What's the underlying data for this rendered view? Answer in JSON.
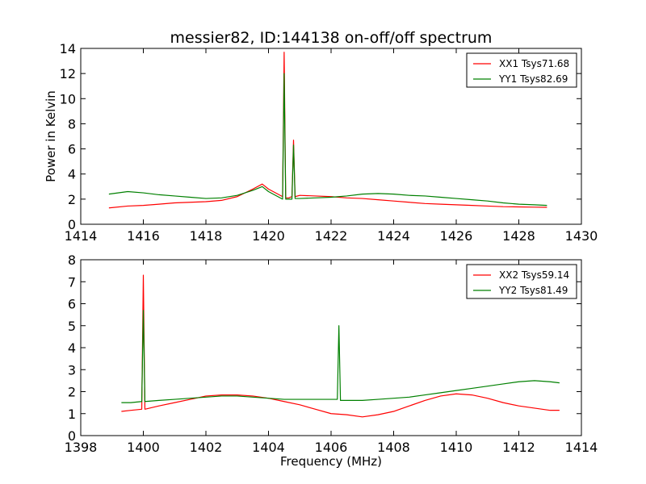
{
  "chart_data": [
    {
      "type": "line",
      "title": "messier82, ID:144138 on-off/off spectrum",
      "xlabel": "",
      "ylabel": "Power in Kelvin",
      "xlim": [
        1414,
        1430
      ],
      "ylim": [
        0,
        14
      ],
      "xticks": [
        1414,
        1416,
        1418,
        1420,
        1422,
        1424,
        1426,
        1428,
        1430
      ],
      "yticks": [
        0,
        2,
        4,
        6,
        8,
        10,
        12,
        14
      ],
      "legend_position": "top-right",
      "series": [
        {
          "name": "XX1 Tsys71.68",
          "color": "#ff0000",
          "x": [
            1414.9,
            1415.5,
            1416.0,
            1416.5,
            1417.0,
            1417.5,
            1418.0,
            1418.5,
            1419.0,
            1419.5,
            1419.8,
            1420.0,
            1420.3,
            1420.45,
            1420.5,
            1420.55,
            1420.65,
            1420.75,
            1420.8,
            1420.85,
            1421.0,
            1421.5,
            1422.0,
            1422.5,
            1423.0,
            1423.5,
            1424.0,
            1424.5,
            1425.0,
            1425.5,
            1426.0,
            1426.5,
            1427.0,
            1427.5,
            1428.0,
            1428.5,
            1428.9
          ],
          "y": [
            1.3,
            1.45,
            1.5,
            1.6,
            1.7,
            1.75,
            1.8,
            1.9,
            2.2,
            2.8,
            3.2,
            2.8,
            2.4,
            2.2,
            13.7,
            2.1,
            2.1,
            2.2,
            6.7,
            2.2,
            2.3,
            2.25,
            2.2,
            2.1,
            2.05,
            1.95,
            1.85,
            1.75,
            1.65,
            1.6,
            1.55,
            1.5,
            1.45,
            1.4,
            1.38,
            1.36,
            1.35
          ]
        },
        {
          "name": "YY1 Tsys82.69",
          "color": "#008000",
          "x": [
            1414.9,
            1415.5,
            1416.0,
            1416.5,
            1417.0,
            1417.5,
            1418.0,
            1418.5,
            1419.0,
            1419.5,
            1419.8,
            1420.0,
            1420.3,
            1420.45,
            1420.5,
            1420.55,
            1420.65,
            1420.75,
            1420.8,
            1420.85,
            1421.0,
            1421.5,
            1422.0,
            1422.5,
            1423.0,
            1423.5,
            1424.0,
            1424.5,
            1425.0,
            1425.5,
            1426.0,
            1426.5,
            1427.0,
            1427.5,
            1428.0,
            1428.5,
            1428.9
          ],
          "y": [
            2.4,
            2.6,
            2.5,
            2.35,
            2.25,
            2.15,
            2.05,
            2.1,
            2.3,
            2.7,
            3.0,
            2.6,
            2.2,
            2.0,
            12.0,
            2.0,
            2.0,
            2.0,
            6.3,
            2.05,
            2.05,
            2.1,
            2.15,
            2.25,
            2.4,
            2.45,
            2.4,
            2.3,
            2.25,
            2.15,
            2.05,
            1.95,
            1.85,
            1.7,
            1.6,
            1.55,
            1.5
          ]
        }
      ]
    },
    {
      "type": "line",
      "title": "",
      "xlabel": "Frequency (MHz)",
      "ylabel": "",
      "xlim": [
        1398,
        1414
      ],
      "ylim": [
        0,
        8
      ],
      "xticks": [
        1398,
        1400,
        1402,
        1404,
        1406,
        1408,
        1410,
        1412,
        1414
      ],
      "yticks": [
        0,
        1,
        2,
        3,
        4,
        5,
        6,
        7,
        8
      ],
      "legend_position": "top-right",
      "series": [
        {
          "name": "XX2 Tsys59.14",
          "color": "#ff0000",
          "x": [
            1399.3,
            1399.6,
            1399.95,
            1400.0,
            1400.05,
            1400.5,
            1401.0,
            1401.5,
            1402.0,
            1402.5,
            1403.0,
            1403.5,
            1404.0,
            1404.5,
            1405.0,
            1405.5,
            1406.0,
            1406.5,
            1407.0,
            1407.5,
            1408.0,
            1408.5,
            1409.0,
            1409.5,
            1410.0,
            1410.5,
            1411.0,
            1411.5,
            1412.0,
            1412.5,
            1413.0,
            1413.3
          ],
          "y": [
            1.1,
            1.15,
            1.2,
            7.3,
            1.2,
            1.35,
            1.5,
            1.65,
            1.8,
            1.85,
            1.85,
            1.8,
            1.7,
            1.55,
            1.4,
            1.2,
            1.0,
            0.95,
            0.85,
            0.95,
            1.1,
            1.35,
            1.6,
            1.8,
            1.9,
            1.85,
            1.7,
            1.5,
            1.35,
            1.25,
            1.15,
            1.15
          ]
        },
        {
          "name": "YY2 Tsys81.49",
          "color": "#008000",
          "x": [
            1399.3,
            1399.6,
            1399.95,
            1400.0,
            1400.05,
            1400.5,
            1401.0,
            1401.5,
            1402.0,
            1402.5,
            1403.0,
            1403.5,
            1404.0,
            1404.5,
            1405.0,
            1405.5,
            1406.0,
            1406.2,
            1406.25,
            1406.3,
            1406.5,
            1407.0,
            1407.5,
            1408.0,
            1408.5,
            1409.0,
            1409.5,
            1410.0,
            1410.5,
            1411.0,
            1411.5,
            1412.0,
            1412.5,
            1413.0,
            1413.3
          ],
          "y": [
            1.5,
            1.5,
            1.55,
            5.7,
            1.55,
            1.6,
            1.65,
            1.7,
            1.75,
            1.8,
            1.8,
            1.75,
            1.7,
            1.65,
            1.65,
            1.65,
            1.65,
            1.65,
            5.0,
            1.6,
            1.6,
            1.6,
            1.65,
            1.7,
            1.75,
            1.85,
            1.95,
            2.05,
            2.15,
            2.25,
            2.35,
            2.45,
            2.5,
            2.45,
            2.4
          ]
        }
      ]
    }
  ]
}
